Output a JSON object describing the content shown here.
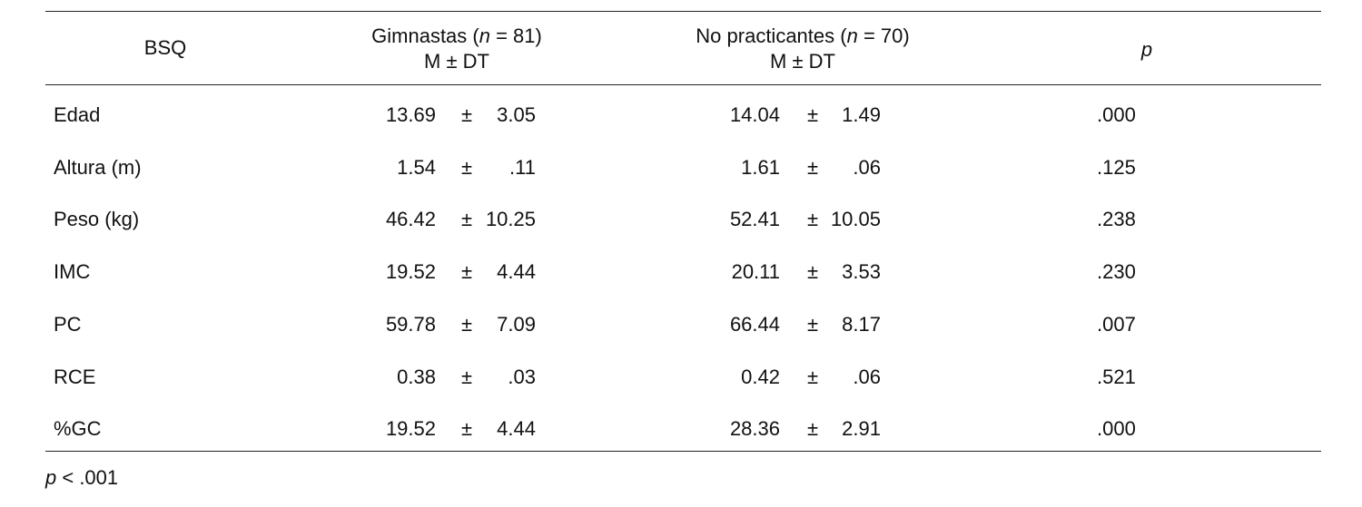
{
  "header": {
    "columns": [
      {
        "text": "BSQ"
      },
      {
        "before": "Gimnastas (",
        "italic": "n",
        "after": " = 81)",
        "sub": "M ± DT"
      },
      {
        "before": "No practicantes (",
        "italic": "n",
        "after": " = 70)",
        "sub": "M ± DT"
      },
      {
        "italic": "p"
      }
    ]
  },
  "table": {
    "pm_sign": "±",
    "rows": [
      [
        "Edad",
        "13.69",
        "3.05",
        "14.04",
        "1.49",
        ".000"
      ],
      [
        "Altura (m)",
        "1.54",
        ".11",
        "1.61",
        ".06",
        ".125"
      ],
      [
        "Peso (kg)",
        "46.42",
        "10.25",
        "52.41",
        "10.05",
        ".238"
      ],
      [
        "IMC",
        "19.52",
        "4.44",
        "20.11",
        "3.53",
        ".230"
      ],
      [
        "PC",
        "59.78",
        "7.09",
        "66.44",
        "8.17",
        ".007"
      ],
      [
        "RCE",
        "0.38",
        ".03",
        "0.42",
        ".06",
        ".521"
      ],
      [
        "%GC",
        "19.52",
        "4.44",
        "28.36",
        "2.91",
        ".000"
      ]
    ]
  },
  "footnote": {
    "italic": "p",
    "text": " < .001"
  }
}
